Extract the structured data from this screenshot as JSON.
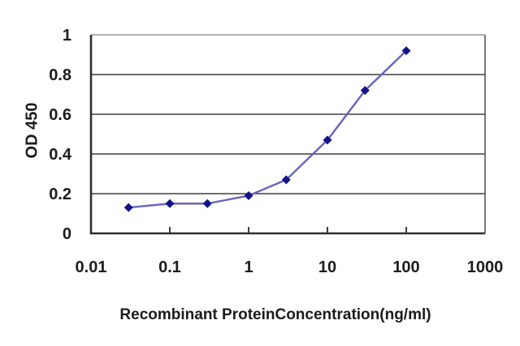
{
  "chart_data": {
    "type": "line",
    "x": [
      0.03,
      0.1,
      0.3,
      1,
      3,
      10,
      30,
      100
    ],
    "y": [
      0.13,
      0.15,
      0.15,
      0.19,
      0.27,
      0.47,
      0.72,
      0.92
    ],
    "xlabel": "Recombinant ProteinConcentration(ng/ml)",
    "ylabel": "OD 450",
    "x_scale": "log",
    "xlim": [
      0.01,
      1000
    ],
    "ylim": [
      0,
      1
    ],
    "x_ticks": [
      0.01,
      0.1,
      1,
      10,
      100,
      1000
    ],
    "x_tick_labels": [
      "0.01",
      "0.1",
      "1",
      "10",
      "100",
      "1000"
    ],
    "y_ticks": [
      0,
      0.2,
      0.4,
      0.6,
      0.8,
      1
    ],
    "y_tick_labels": [
      "0",
      "0.2",
      "0.4",
      "0.6",
      "0.8",
      "1"
    ],
    "grid": "horizontal",
    "legend_position": "none",
    "marker": "diamond",
    "colors": {
      "line": "#6666bb",
      "marker": "#12128c",
      "gridline": "#3f3f3f",
      "gridline_top": "#9a9a9a",
      "axis": "#2e2e2e",
      "plot_border_right": "#565656",
      "tick": "#3f3f3f",
      "text": "#1c1c1c",
      "background": "#ffffff"
    }
  }
}
